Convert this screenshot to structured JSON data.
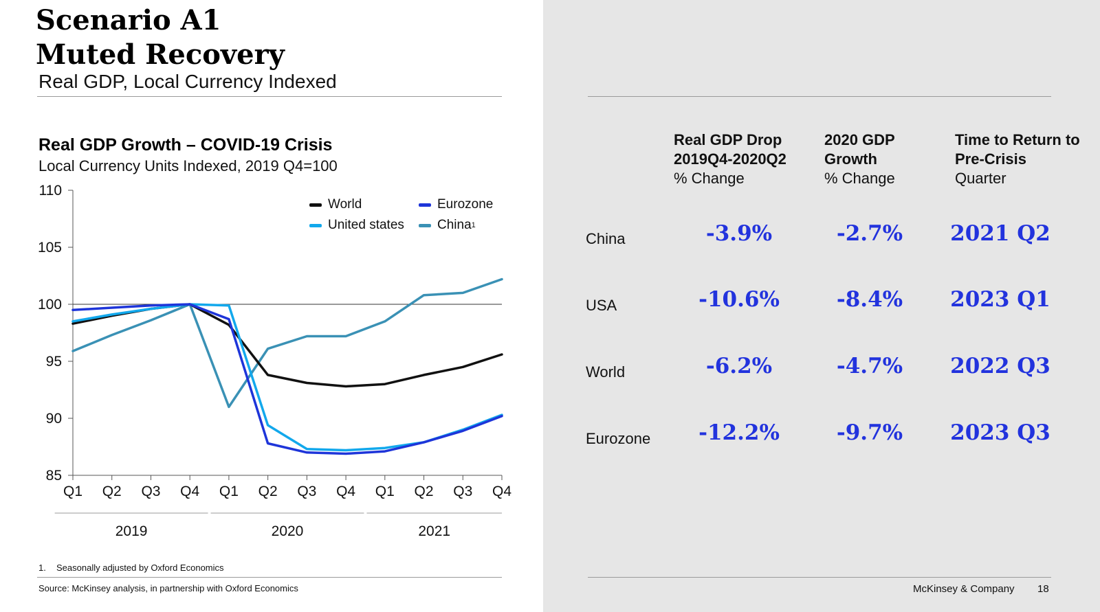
{
  "slide": {
    "title_line1": "Scenario A1",
    "title_line2": "Muted Recovery",
    "subtitle": "Real GDP, Local Currency Indexed",
    "footnote_number": "1.",
    "footnote_text": "Seasonally adjusted by Oxford Economics",
    "source": "Source: McKinsey analysis, in partnership with Oxford Economics",
    "brand": "McKinsey & Company",
    "page_number": "18"
  },
  "chart_data": {
    "type": "line",
    "title": "Real GDP Growth – COVID-19 Crisis",
    "subtitle": "Local Currency Units Indexed, 2019 Q4=100",
    "x": [
      "Q1",
      "Q2",
      "Q3",
      "Q4",
      "Q1",
      "Q2",
      "Q3",
      "Q4",
      "Q1",
      "Q2",
      "Q3",
      "Q4"
    ],
    "year_groups": [
      {
        "label": "2019",
        "from": 0,
        "to": 3
      },
      {
        "label": "2020",
        "from": 4,
        "to": 7
      },
      {
        "label": "2021",
        "from": 8,
        "to": 11
      }
    ],
    "ylim": [
      85,
      110
    ],
    "yticks": [
      85,
      90,
      95,
      100,
      105,
      110
    ],
    "reference_line": 100,
    "legend_position": "top-right",
    "series": [
      {
        "name": "World",
        "legend_label": "World",
        "footnote_mark": "",
        "color": "#111111",
        "values": [
          98.3,
          99.0,
          99.6,
          100.0,
          98.2,
          93.8,
          93.1,
          92.8,
          93.0,
          93.8,
          94.5,
          95.6
        ]
      },
      {
        "name": "Eurozone",
        "legend_label": "Eurozone",
        "footnote_mark": "",
        "color": "#1e35d9",
        "values": [
          99.5,
          99.7,
          99.9,
          100.0,
          98.7,
          87.8,
          87.0,
          86.9,
          87.1,
          87.9,
          88.9,
          90.2
        ]
      },
      {
        "name": "United states",
        "legend_label": "United states",
        "footnote_mark": "",
        "color": "#12a8ec",
        "values": [
          98.5,
          99.1,
          99.6,
          100.0,
          99.9,
          89.4,
          87.3,
          87.2,
          87.4,
          87.9,
          89.0,
          90.3
        ]
      },
      {
        "name": "China",
        "legend_label": "China",
        "footnote_mark": "1",
        "color": "#3a91b5",
        "values": [
          95.9,
          97.3,
          98.6,
          100.0,
          91.0,
          96.1,
          97.2,
          97.2,
          98.5,
          100.8,
          101.0,
          102.2
        ]
      }
    ]
  },
  "table": {
    "columns": [
      {
        "title1": "Real GDP Drop",
        "title2": "2019Q4-2020Q2",
        "unit": "% Change"
      },
      {
        "title1": "2020 GDP",
        "title2": "Growth",
        "unit": "% Change"
      },
      {
        "title1": "Time to Return to",
        "title2": "Pre-Crisis",
        "unit": "Quarter"
      }
    ],
    "rows": [
      {
        "label": "China",
        "drop": "-3.9%",
        "growth": "-2.7%",
        "return": "2021 Q2"
      },
      {
        "label": "USA",
        "drop": "-10.6%",
        "growth": "-8.4%",
        "return": "2023 Q1"
      },
      {
        "label": "World",
        "drop": "-6.2%",
        "growth": "-4.7%",
        "return": "2022 Q3"
      },
      {
        "label": "Eurozone",
        "drop": "-12.2%",
        "growth": "-9.7%",
        "return": "2023 Q3"
      }
    ]
  },
  "colors": {
    "value_text": "#2233dd",
    "right_background": "#e6e6e6",
    "rule": "#9a9a9a"
  }
}
